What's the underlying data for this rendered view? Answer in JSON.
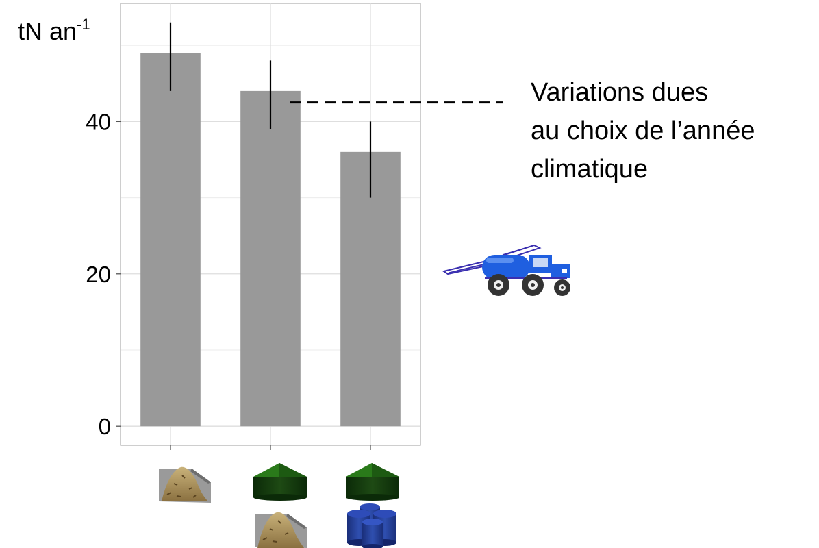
{
  "chart_data": {
    "type": "bar",
    "ylabel": "tN an",
    "ylabel_superscript": "-1",
    "categories": [
      "fumier",
      "digesteur + fumier",
      "digesteur + cuves"
    ],
    "values": [
      49,
      44,
      36
    ],
    "error_low": [
      44,
      39,
      30
    ],
    "error_high": [
      53,
      48,
      40
    ],
    "ylim": [
      -2.5,
      55.5
    ],
    "yticks": [
      0,
      20,
      40
    ],
    "grid": true,
    "bar_color": "#999999",
    "annotation": {
      "lines": [
        "Variations dues",
        "au choix de l’année",
        "climatique"
      ],
      "y_value": 42.5
    },
    "category_icons": [
      [
        "manure-pile-icon"
      ],
      [
        "green-digester-icon",
        "manure-pile-icon"
      ],
      [
        "green-digester-icon",
        "blue-tanks-icon"
      ]
    ],
    "extra_icons": [
      "tractor-sprayer-icon"
    ]
  }
}
